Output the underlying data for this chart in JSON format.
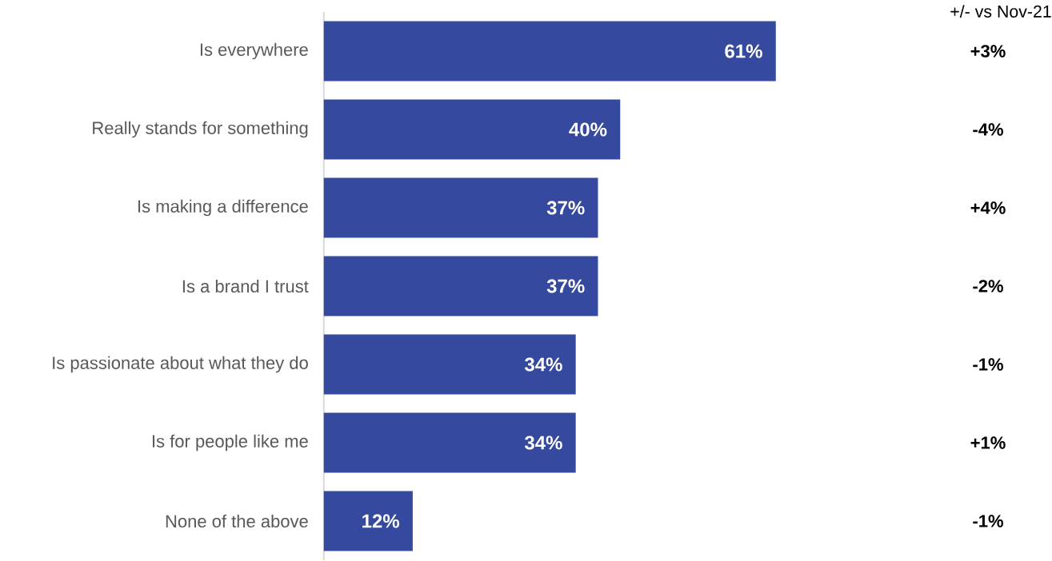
{
  "chart_data": {
    "type": "bar",
    "orientation": "horizontal",
    "categories": [
      "Is everywhere",
      "Really stands for something",
      "Is making a difference",
      "Is a brand I trust",
      "Is passionate about what they do",
      "Is for people like me",
      "None of the above"
    ],
    "values": [
      61,
      40,
      37,
      37,
      34,
      34,
      12
    ],
    "color": "#354a9f",
    "value_labels": [
      "61%",
      "40%",
      "37%",
      "37%",
      "34%",
      "34%",
      "12%"
    ],
    "annotations": [
      "+/- vs Nov-21",
      "+3%",
      "-4%",
      "+4%",
      "-2%",
      "-1%",
      "+1%",
      "-1%"
    ]
  }
}
